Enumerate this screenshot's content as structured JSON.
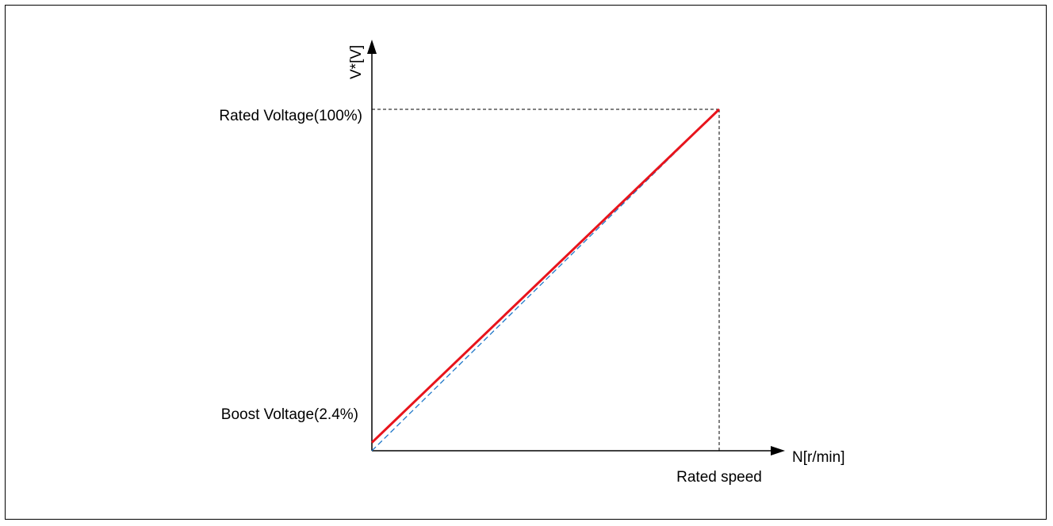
{
  "y_axis_label": "V*[V]",
  "x_axis_label": "N[r/min]",
  "rated_voltage_label": "Rated Voltage(100%)",
  "boost_voltage_label": "Boost Voltage(2.4%)",
  "rated_speed_label": "Rated speed",
  "colors": {
    "vf_line": "#e8141c",
    "reference_line": "#1f77c8",
    "axis": "#000000"
  },
  "chart_data": {
    "type": "line",
    "series": [
      {
        "x": [
          0,
          100
        ],
        "y": [
          2.4,
          100
        ]
      },
      {
        "x": [
          0,
          100
        ],
        "y": [
          0,
          100
        ]
      }
    ],
    "xlim": [
      0,
      100
    ],
    "ylim": [
      0,
      100
    ]
  }
}
